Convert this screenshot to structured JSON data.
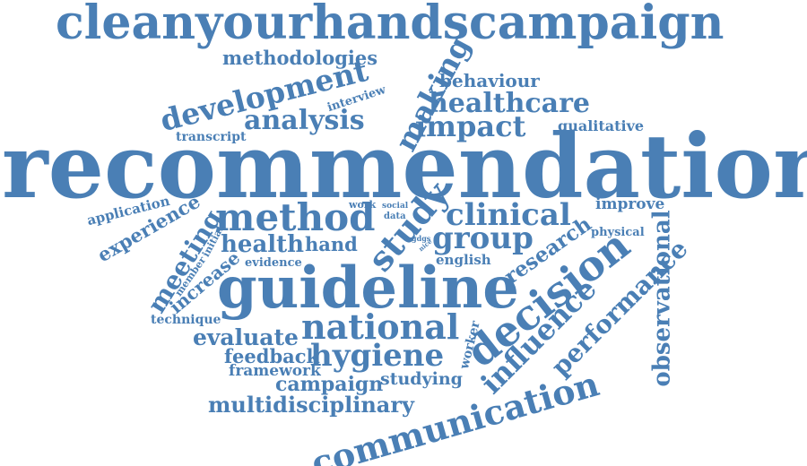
{
  "cloud": {
    "color": "#4a7fb5",
    "words": [
      {
        "id": "cleanyourhandscampaign",
        "text": "cleanyourhandscampaign"
      },
      {
        "id": "methodologies",
        "text": "methodologies"
      },
      {
        "id": "making",
        "text": "making"
      },
      {
        "id": "behaviour",
        "text": "behaviour"
      },
      {
        "id": "development",
        "text": "development"
      },
      {
        "id": "interview",
        "text": "interview"
      },
      {
        "id": "healthcare",
        "text": "healthcare"
      },
      {
        "id": "analysis",
        "text": "analysis"
      },
      {
        "id": "impact",
        "text": "impact"
      },
      {
        "id": "qualitative",
        "text": "qualitative"
      },
      {
        "id": "transcript",
        "text": "transcript"
      },
      {
        "id": "recommendation",
        "text": "recommendation"
      },
      {
        "id": "application",
        "text": "application"
      },
      {
        "id": "work",
        "text": "work"
      },
      {
        "id": "social",
        "text": "social"
      },
      {
        "id": "data",
        "text": "data"
      },
      {
        "id": "improve",
        "text": "improve"
      },
      {
        "id": "experience",
        "text": "experience"
      },
      {
        "id": "method",
        "text": "method"
      },
      {
        "id": "study",
        "text": "study"
      },
      {
        "id": "clinical",
        "text": "clinical"
      },
      {
        "id": "physical",
        "text": "physical"
      },
      {
        "id": "meeting",
        "text": "meeting"
      },
      {
        "id": "initial",
        "text": "initial"
      },
      {
        "id": "health",
        "text": "health"
      },
      {
        "id": "hand",
        "text": "hand"
      },
      {
        "id": "gdgs",
        "text": "gdgs"
      },
      {
        "id": "nice",
        "text": "nice"
      },
      {
        "id": "group",
        "text": "group"
      },
      {
        "id": "research",
        "text": "research"
      },
      {
        "id": "observational",
        "text": "observational"
      },
      {
        "id": "member",
        "text": "member"
      },
      {
        "id": "evidence",
        "text": "evidence"
      },
      {
        "id": "english",
        "text": "english"
      },
      {
        "id": "increase",
        "text": "increase"
      },
      {
        "id": "guideline",
        "text": "guideline"
      },
      {
        "id": "decision",
        "text": "decision"
      },
      {
        "id": "performance",
        "text": "performance"
      },
      {
        "id": "technique",
        "text": "technique"
      },
      {
        "id": "national",
        "text": "national"
      },
      {
        "id": "influence",
        "text": "influence"
      },
      {
        "id": "evaluate",
        "text": "evaluate"
      },
      {
        "id": "worker",
        "text": "worker"
      },
      {
        "id": "feedback",
        "text": "feedback"
      },
      {
        "id": "hygiene",
        "text": "hygiene"
      },
      {
        "id": "framework",
        "text": "framework"
      },
      {
        "id": "studying",
        "text": "studying"
      },
      {
        "id": "campaign",
        "text": "campaign"
      },
      {
        "id": "multidisciplinary",
        "text": "multidisciplinary"
      },
      {
        "id": "communication",
        "text": "communication"
      }
    ]
  }
}
